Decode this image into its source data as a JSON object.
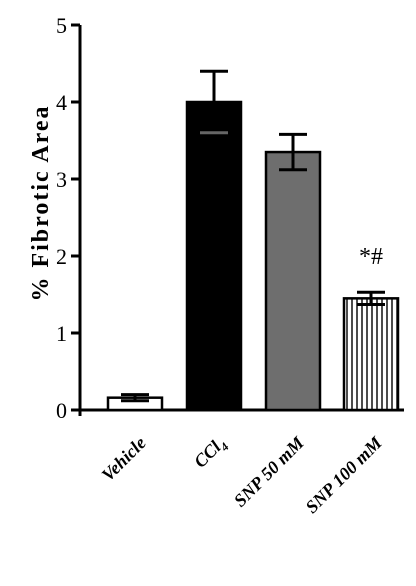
{
  "chart_data": {
    "type": "bar",
    "ylabel": "% Fibrotic Area",
    "xlabel": "",
    "ylim": [
      0,
      5
    ],
    "yticks": [
      "0",
      "1",
      "2",
      "3",
      "4",
      "5"
    ],
    "categories": [
      "Vehicle",
      "CCl4",
      "SNP 50 mM",
      "SNP 100 mM"
    ],
    "category_parts": [
      {
        "main": "Vehicle",
        "sub": ""
      },
      {
        "main": "CCl",
        "sub": "4"
      },
      {
        "main": "SNP 50 mM",
        "sub": ""
      },
      {
        "main": "SNP 100 mM",
        "sub": ""
      }
    ],
    "values": [
      0.16,
      4.0,
      3.35,
      1.45
    ],
    "errors": [
      0.04,
      0.4,
      0.23,
      0.08
    ],
    "fills": [
      "white",
      "#000000",
      "#6e6e6e",
      "vertical-stripes"
    ],
    "annotations": [
      {
        "category": "SNP 100 mM",
        "text": "*#"
      }
    ],
    "grid": false
  }
}
